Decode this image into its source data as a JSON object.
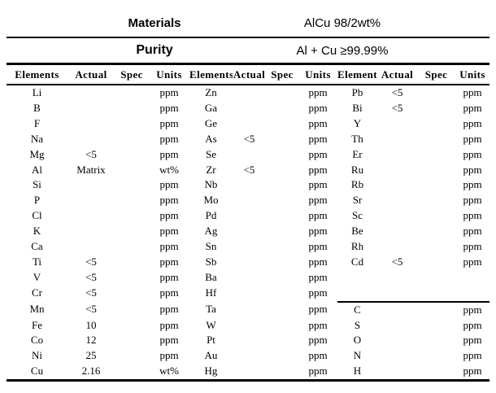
{
  "meta": {
    "materials_label": "Materials",
    "materials_value": "AlCu 98/2wt%",
    "purity_label": "Purity",
    "purity_value": "Al + Cu ≥99.99%"
  },
  "colors": {
    "text": "#000000",
    "background": "#ffffff",
    "rule": "#000000"
  },
  "table": {
    "column_headers": [
      "Elements",
      "Actual",
      "Spec",
      "Units"
    ],
    "group_count": 3,
    "g3_separator_above_row": 15,
    "rows": [
      {
        "g1": {
          "element": "Li",
          "actual": "",
          "spec": "",
          "units": "ppm"
        },
        "g2": {
          "element": "Zn",
          "actual": "",
          "spec": "",
          "units": "ppm"
        },
        "g3": {
          "element": "Pb",
          "actual": "<5",
          "spec": "",
          "units": "ppm"
        }
      },
      {
        "g1": {
          "element": "B",
          "actual": "",
          "spec": "",
          "units": "ppm"
        },
        "g2": {
          "element": "Ga",
          "actual": "",
          "spec": "",
          "units": "ppm"
        },
        "g3": {
          "element": "Bi",
          "actual": "<5",
          "spec": "",
          "units": "ppm"
        }
      },
      {
        "g1": {
          "element": "F",
          "actual": "",
          "spec": "",
          "units": "ppm"
        },
        "g2": {
          "element": "Ge",
          "actual": "",
          "spec": "",
          "units": "ppm"
        },
        "g3": {
          "element": "Y",
          "actual": "",
          "spec": "",
          "units": "ppm"
        }
      },
      {
        "g1": {
          "element": "Na",
          "actual": "",
          "spec": "",
          "units": "ppm"
        },
        "g2": {
          "element": "As",
          "actual": "<5",
          "spec": "",
          "units": "ppm"
        },
        "g3": {
          "element": "Th",
          "actual": "",
          "spec": "",
          "units": "ppm"
        }
      },
      {
        "g1": {
          "element": "Mg",
          "actual": "<5",
          "spec": "",
          "units": "ppm"
        },
        "g2": {
          "element": "Se",
          "actual": "",
          "spec": "",
          "units": "ppm"
        },
        "g3": {
          "element": "Er",
          "actual": "",
          "spec": "",
          "units": "ppm"
        }
      },
      {
        "g1": {
          "element": "Al",
          "actual": "Matrix",
          "spec": "",
          "units": "wt%"
        },
        "g2": {
          "element": "Zr",
          "actual": "<5",
          "spec": "",
          "units": "ppm"
        },
        "g3": {
          "element": "Ru",
          "actual": "",
          "spec": "",
          "units": "ppm"
        }
      },
      {
        "g1": {
          "element": "Si",
          "actual": "",
          "spec": "",
          "units": "ppm"
        },
        "g2": {
          "element": "Nb",
          "actual": "",
          "spec": "",
          "units": "ppm"
        },
        "g3": {
          "element": "Rb",
          "actual": "",
          "spec": "",
          "units": "ppm"
        }
      },
      {
        "g1": {
          "element": "P",
          "actual": "",
          "spec": "",
          "units": "ppm"
        },
        "g2": {
          "element": "Mo",
          "actual": "",
          "spec": "",
          "units": "ppm"
        },
        "g3": {
          "element": "Sr",
          "actual": "",
          "spec": "",
          "units": "ppm"
        }
      },
      {
        "g1": {
          "element": "Cl",
          "actual": "",
          "spec": "",
          "units": "ppm"
        },
        "g2": {
          "element": "Pd",
          "actual": "",
          "spec": "",
          "units": "ppm"
        },
        "g3": {
          "element": "Sc",
          "actual": "",
          "spec": "",
          "units": "ppm"
        }
      },
      {
        "g1": {
          "element": "K",
          "actual": "",
          "spec": "",
          "units": "ppm"
        },
        "g2": {
          "element": "Ag",
          "actual": "",
          "spec": "",
          "units": "ppm"
        },
        "g3": {
          "element": "Be",
          "actual": "",
          "spec": "",
          "units": "ppm"
        }
      },
      {
        "g1": {
          "element": "Ca",
          "actual": "",
          "spec": "",
          "units": "ppm"
        },
        "g2": {
          "element": "Sn",
          "actual": "",
          "spec": "",
          "units": "ppm"
        },
        "g3": {
          "element": "Rh",
          "actual": "",
          "spec": "",
          "units": "ppm"
        }
      },
      {
        "g1": {
          "element": "Ti",
          "actual": "<5",
          "spec": "",
          "units": "ppm"
        },
        "g2": {
          "element": "Sb",
          "actual": "",
          "spec": "",
          "units": "ppm"
        },
        "g3": {
          "element": "Cd",
          "actual": "<5",
          "spec": "",
          "units": "ppm"
        }
      },
      {
        "g1": {
          "element": "V",
          "actual": "<5",
          "spec": "",
          "units": "ppm"
        },
        "g2": {
          "element": "Ba",
          "actual": "",
          "spec": "",
          "units": "ppm"
        },
        "g3": {
          "element": "",
          "actual": "",
          "spec": "",
          "units": ""
        }
      },
      {
        "g1": {
          "element": "Cr",
          "actual": "<5",
          "spec": "",
          "units": "ppm"
        },
        "g2": {
          "element": "Hf",
          "actual": "",
          "spec": "",
          "units": "ppm"
        },
        "g3": {
          "element": "",
          "actual": "",
          "spec": "",
          "units": ""
        }
      },
      {
        "g1": {
          "element": "Mn",
          "actual": "<5",
          "spec": "",
          "units": "ppm"
        },
        "g2": {
          "element": "Ta",
          "actual": "",
          "spec": "",
          "units": "ppm"
        },
        "g3": {
          "element": "C",
          "actual": "",
          "spec": "",
          "units": "ppm"
        }
      },
      {
        "g1": {
          "element": "Fe",
          "actual": "10",
          "spec": "",
          "units": "ppm"
        },
        "g2": {
          "element": "W",
          "actual": "",
          "spec": "",
          "units": "ppm"
        },
        "g3": {
          "element": "S",
          "actual": "",
          "spec": "",
          "units": "ppm"
        }
      },
      {
        "g1": {
          "element": "Co",
          "actual": "12",
          "spec": "",
          "units": "ppm"
        },
        "g2": {
          "element": "Pt",
          "actual": "",
          "spec": "",
          "units": "ppm"
        },
        "g3": {
          "element": "O",
          "actual": "",
          "spec": "",
          "units": "ppm"
        }
      },
      {
        "g1": {
          "element": "Ni",
          "actual": "25",
          "spec": "",
          "units": "ppm"
        },
        "g2": {
          "element": "Au",
          "actual": "",
          "spec": "",
          "units": "ppm"
        },
        "g3": {
          "element": "N",
          "actual": "",
          "spec": "",
          "units": "ppm"
        }
      },
      {
        "g1": {
          "element": "Cu",
          "actual": "2.16",
          "spec": "",
          "units": "wt%"
        },
        "g2": {
          "element": "Hg",
          "actual": "",
          "spec": "",
          "units": "ppm"
        },
        "g3": {
          "element": "H",
          "actual": "",
          "spec": "",
          "units": "ppm"
        }
      }
    ]
  }
}
